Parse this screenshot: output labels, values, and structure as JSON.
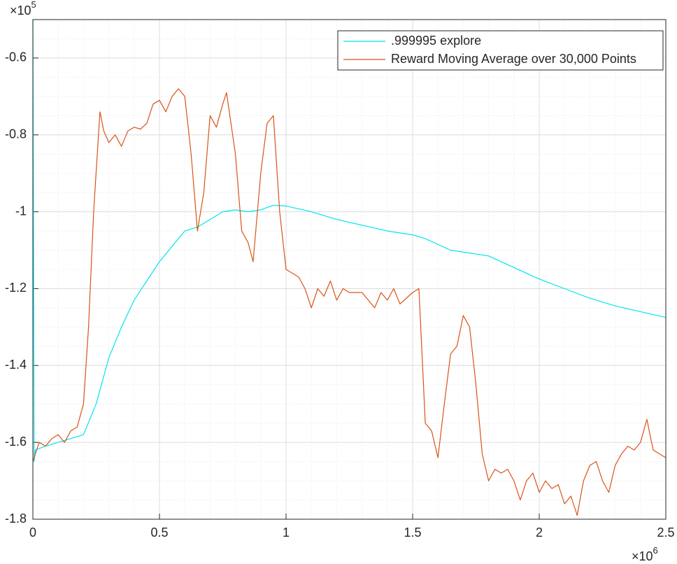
{
  "chart_data": {
    "type": "line",
    "xlim": [
      0,
      2.5
    ],
    "ylim": [
      -1.8,
      -0.5
    ],
    "xticks": [
      0,
      0.5,
      1,
      1.5,
      2,
      2.5
    ],
    "yticks": [
      -1.8,
      -1.6,
      -1.4,
      -1.2,
      -1,
      -0.8,
      -0.6
    ],
    "xminorticks": [
      0.1,
      0.2,
      0.3,
      0.4,
      0.6,
      0.7,
      0.8,
      0.9,
      1.1,
      1.2,
      1.3,
      1.4,
      1.6,
      1.7,
      1.8,
      1.9,
      2.1,
      2.2,
      2.3,
      2.4
    ],
    "yminorticks": [
      -1.75,
      -1.7,
      -1.65,
      -1.55,
      -1.5,
      -1.45,
      -1.35,
      -1.3,
      -1.25,
      -1.15,
      -1.1,
      -1.05,
      -0.95,
      -0.9,
      -0.85,
      -0.75,
      -0.7,
      -0.65,
      -0.55
    ],
    "grid": true,
    "minor_grid": true,
    "legend": "upper right",
    "x_exponent": {
      "base": "×10",
      "power": "6"
    },
    "y_exponent": {
      "base": "×10",
      "power": "5"
    },
    "series": [
      {
        "name": ".999995 explore",
        "color": "#00e5ee",
        "x": [
          0,
          0.005,
          0.01,
          0.05,
          0.1,
          0.15,
          0.2,
          0.25,
          0.3,
          0.35,
          0.4,
          0.45,
          0.5,
          0.55,
          0.6,
          0.65,
          0.7,
          0.75,
          0.8,
          0.85,
          0.9,
          0.95,
          1.0,
          1.1,
          1.2,
          1.3,
          1.4,
          1.5,
          1.55,
          1.65,
          1.8,
          1.9,
          2.0,
          2.1,
          2.2,
          2.3,
          2.4,
          2.5
        ],
        "values": [
          -0.5,
          -1.65,
          -1.62,
          -1.61,
          -1.6,
          -1.59,
          -1.58,
          -1.5,
          -1.38,
          -1.3,
          -1.23,
          -1.18,
          -1.13,
          -1.09,
          -1.05,
          -1.04,
          -1.02,
          -1.0,
          -0.995,
          -1.0,
          -0.995,
          -0.983,
          -0.985,
          -1.0,
          -1.02,
          -1.035,
          -1.05,
          -1.06,
          -1.07,
          -1.1,
          -1.115,
          -1.145,
          -1.175,
          -1.2,
          -1.225,
          -1.245,
          -1.26,
          -1.275
        ]
      },
      {
        "name": "Reward Moving Average over 30,000 Points",
        "color": "#d95319",
        "x": [
          0,
          0.025,
          0.05,
          0.075,
          0.1,
          0.125,
          0.15,
          0.175,
          0.2,
          0.22,
          0.24,
          0.265,
          0.28,
          0.3,
          0.325,
          0.35,
          0.375,
          0.4,
          0.425,
          0.45,
          0.475,
          0.5,
          0.525,
          0.55,
          0.575,
          0.6,
          0.625,
          0.65,
          0.675,
          0.7,
          0.725,
          0.75,
          0.765,
          0.8,
          0.825,
          0.85,
          0.87,
          0.9,
          0.925,
          0.95,
          0.975,
          1.0,
          1.05,
          1.075,
          1.1,
          1.125,
          1.15,
          1.175,
          1.2,
          1.225,
          1.25,
          1.3,
          1.35,
          1.375,
          1.4,
          1.425,
          1.45,
          1.5,
          1.525,
          1.55,
          1.575,
          1.6,
          1.625,
          1.65,
          1.675,
          1.7,
          1.725,
          1.75,
          1.775,
          1.8,
          1.825,
          1.85,
          1.875,
          1.9,
          1.925,
          1.95,
          1.975,
          2.0,
          2.025,
          2.05,
          2.075,
          2.1,
          2.125,
          2.15,
          2.175,
          2.2,
          2.225,
          2.25,
          2.275,
          2.3,
          2.325,
          2.35,
          2.375,
          2.4,
          2.425,
          2.45,
          2.475,
          2.5
        ],
        "values": [
          -1.65,
          -1.6,
          -1.61,
          -1.59,
          -1.58,
          -1.6,
          -1.57,
          -1.56,
          -1.5,
          -1.3,
          -1.0,
          -0.74,
          -0.79,
          -0.82,
          -0.8,
          -0.83,
          -0.79,
          -0.78,
          -0.785,
          -0.77,
          -0.72,
          -0.71,
          -0.74,
          -0.7,
          -0.68,
          -0.7,
          -0.85,
          -1.05,
          -0.95,
          -0.75,
          -0.78,
          -0.72,
          -0.69,
          -0.85,
          -1.05,
          -1.08,
          -1.13,
          -0.9,
          -0.77,
          -0.75,
          -1.0,
          -1.15,
          -1.17,
          -1.2,
          -1.25,
          -1.2,
          -1.22,
          -1.18,
          -1.23,
          -1.2,
          -1.21,
          -1.21,
          -1.25,
          -1.21,
          -1.23,
          -1.2,
          -1.24,
          -1.21,
          -1.2,
          -1.55,
          -1.57,
          -1.64,
          -1.5,
          -1.37,
          -1.35,
          -1.27,
          -1.3,
          -1.45,
          -1.63,
          -1.7,
          -1.67,
          -1.68,
          -1.67,
          -1.7,
          -1.75,
          -1.7,
          -1.68,
          -1.73,
          -1.7,
          -1.72,
          -1.71,
          -1.76,
          -1.74,
          -1.79,
          -1.7,
          -1.66,
          -1.65,
          -1.7,
          -1.73,
          -1.66,
          -1.63,
          -1.61,
          -1.62,
          -1.6,
          -1.54,
          -1.62,
          -1.63,
          -1.64
        ]
      }
    ]
  }
}
